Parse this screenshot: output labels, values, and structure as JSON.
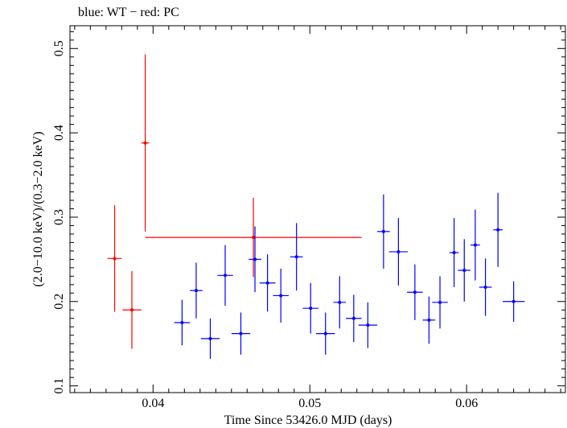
{
  "chart_data": {
    "type": "scatter",
    "title": "blue: WT − red: PC",
    "xlabel": "Time Since 53426.0 MJD (days)",
    "ylabel": "(2.0−10.0 keV)/(0.3−2.0 keV)",
    "xlim": [
      0.0347,
      0.0663
    ],
    "ylim": [
      0.092,
      0.527
    ],
    "x_ticks": [
      0.04,
      0.05,
      0.06
    ],
    "x_tick_labels": [
      "0.04",
      "0.05",
      "0.06"
    ],
    "y_ticks": [
      0.1,
      0.2,
      0.3,
      0.4,
      0.5
    ],
    "y_tick_labels": [
      "0.1",
      "0.2",
      "0.3",
      "0.4",
      "0.5"
    ],
    "grid": false,
    "series": [
      {
        "color": "#ff0000",
        "points": [
          {
            "x": 0.03755,
            "xerr": 0.00045,
            "y": 0.251,
            "yerr": 0.063
          },
          {
            "x": 0.03865,
            "xerr": 0.0006,
            "y": 0.19,
            "yerr": 0.046
          },
          {
            "x": 0.0395,
            "xerr": 0.00025,
            "y": 0.388,
            "yerr": 0.105
          },
          {
            "x": 0.0464,
            "xerr": 0.0069,
            "y": 0.276,
            "yerr": 0.047
          }
        ]
      },
      {
        "color": "#0000ff",
        "points": [
          {
            "x": 0.04185,
            "xerr": 0.0005,
            "y": 0.175,
            "yerr": 0.027
          },
          {
            "x": 0.04275,
            "xerr": 0.0004,
            "y": 0.213,
            "yerr": 0.033
          },
          {
            "x": 0.04365,
            "xerr": 0.0006,
            "y": 0.156,
            "yerr": 0.024
          },
          {
            "x": 0.0446,
            "xerr": 0.0005,
            "y": 0.231,
            "yerr": 0.036
          },
          {
            "x": 0.0456,
            "xerr": 0.0006,
            "y": 0.162,
            "yerr": 0.025
          },
          {
            "x": 0.0465,
            "xerr": 0.0004,
            "y": 0.25,
            "yerr": 0.039
          },
          {
            "x": 0.0473,
            "xerr": 0.0005,
            "y": 0.222,
            "yerr": 0.034
          },
          {
            "x": 0.04815,
            "xerr": 0.0005,
            "y": 0.207,
            "yerr": 0.032
          },
          {
            "x": 0.04915,
            "xerr": 0.0004,
            "y": 0.253,
            "yerr": 0.04
          },
          {
            "x": 0.05005,
            "xerr": 0.0005,
            "y": 0.192,
            "yerr": 0.03
          },
          {
            "x": 0.051,
            "xerr": 0.0006,
            "y": 0.162,
            "yerr": 0.025
          },
          {
            "x": 0.0519,
            "xerr": 0.0004,
            "y": 0.199,
            "yerr": 0.031
          },
          {
            "x": 0.0528,
            "xerr": 0.0005,
            "y": 0.18,
            "yerr": 0.028
          },
          {
            "x": 0.0537,
            "xerr": 0.0006,
            "y": 0.172,
            "yerr": 0.027
          },
          {
            "x": 0.0547,
            "xerr": 0.0004,
            "y": 0.283,
            "yerr": 0.044
          },
          {
            "x": 0.05565,
            "xerr": 0.0006,
            "y": 0.259,
            "yerr": 0.04
          },
          {
            "x": 0.0567,
            "xerr": 0.0005,
            "y": 0.211,
            "yerr": 0.033
          },
          {
            "x": 0.0576,
            "xerr": 0.0004,
            "y": 0.178,
            "yerr": 0.028
          },
          {
            "x": 0.0583,
            "xerr": 0.0005,
            "y": 0.199,
            "yerr": 0.031
          },
          {
            "x": 0.0592,
            "xerr": 0.0003,
            "y": 0.258,
            "yerr": 0.041
          },
          {
            "x": 0.05985,
            "xerr": 0.0004,
            "y": 0.237,
            "yerr": 0.037
          },
          {
            "x": 0.06055,
            "xerr": 0.0003,
            "y": 0.267,
            "yerr": 0.042
          },
          {
            "x": 0.0612,
            "xerr": 0.0004,
            "y": 0.217,
            "yerr": 0.034
          },
          {
            "x": 0.062,
            "xerr": 0.0003,
            "y": 0.285,
            "yerr": 0.044
          },
          {
            "x": 0.063,
            "xerr": 0.0007,
            "y": 0.2,
            "yerr": 0.024
          }
        ]
      }
    ]
  }
}
